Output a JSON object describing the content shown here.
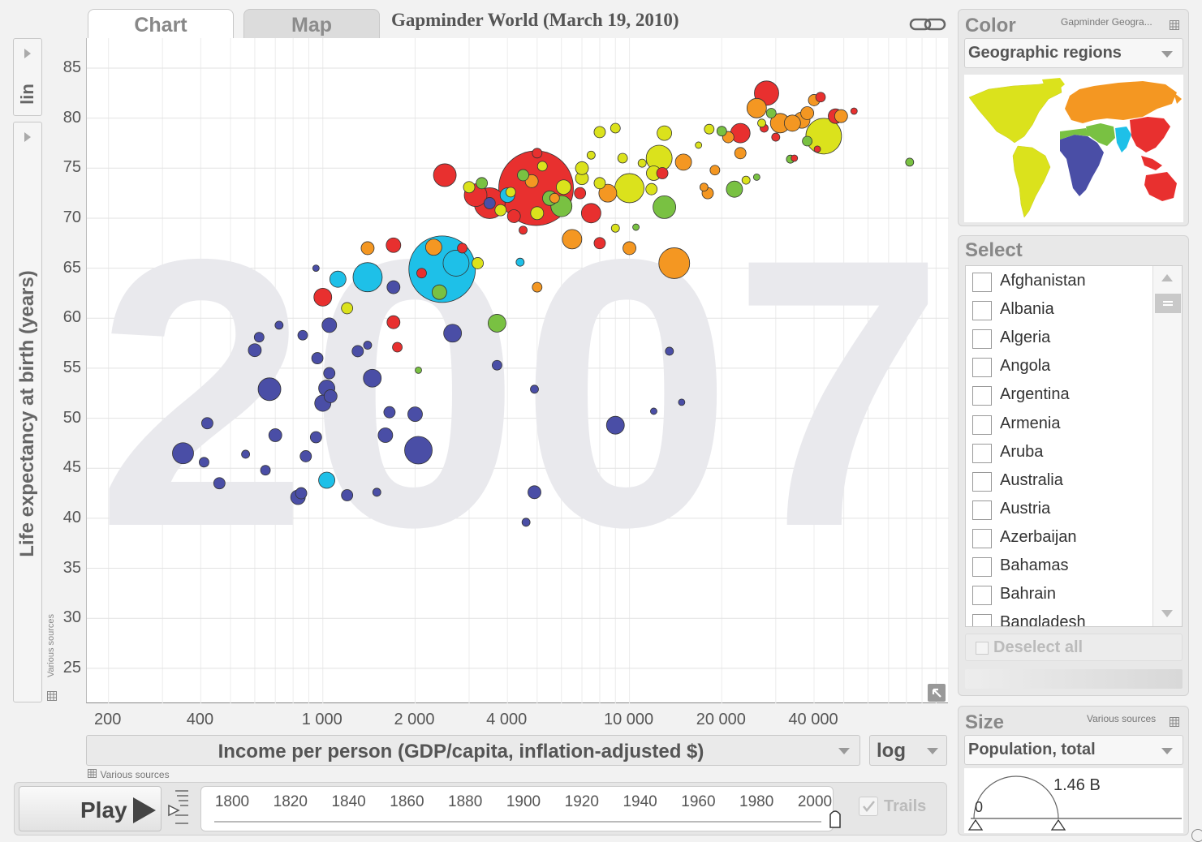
{
  "tabs": {
    "chart": "Chart",
    "map": "Map"
  },
  "title": "Gapminder World (March 19, 2010)",
  "big_year": "2007",
  "y_axis": {
    "label": "Life expectancy at birth (years)",
    "scale": "lin",
    "source": "Various sources"
  },
  "x_axis": {
    "label": "Income per person (GDP/capita, inflation-adjusted $)",
    "scale": "log",
    "source": "Various sources"
  },
  "play": {
    "label": "Play",
    "trails": "Trails"
  },
  "timeline": {
    "years": [
      "1800",
      "1820",
      "1840",
      "1860",
      "1880",
      "1900",
      "1920",
      "1940",
      "1960",
      "1980",
      "2000"
    ],
    "current_year": 2007
  },
  "color_panel": {
    "title": "Color",
    "note": "Gapminder Geogra...",
    "selected": "Geographic regions"
  },
  "select_panel": {
    "title": "Select",
    "countries": [
      "Afghanistan",
      "Albania",
      "Algeria",
      "Angola",
      "Argentina",
      "Armenia",
      "Aruba",
      "Australia",
      "Austria",
      "Azerbaijan",
      "Bahamas",
      "Bahrain",
      "Bangladesh"
    ],
    "deselect": "Deselect all"
  },
  "size_panel": {
    "title": "Size",
    "note": "Various sources",
    "selected": "Population, total",
    "min": "0",
    "max": "1.46 B"
  },
  "colors": {
    "blue": "#4a4ea6",
    "cyan": "#1ec0e8",
    "green": "#79c142",
    "yellow": "#dbe21c",
    "orange": "#f49722",
    "red": "#e8302f"
  },
  "chart_data": {
    "type": "scatter",
    "title": "Gapminder World 2007",
    "xlabel": "Income per person (GDP/capita, inflation-adjusted $)",
    "ylabel": "Life expectancy at birth (years)",
    "x_scale": "log",
    "xlim": [
      170,
      110000
    ],
    "ylim": [
      21.5,
      88
    ],
    "x_ticks": [
      "200",
      "400",
      "1 000",
      "2 000",
      "4 000",
      "10 000",
      "20 000",
      "40 000"
    ],
    "x_tick_values": [
      200,
      400,
      1000,
      2000,
      4000,
      10000,
      20000,
      40000
    ],
    "y_ticks": [
      25,
      30,
      35,
      40,
      45,
      50,
      55,
      60,
      65,
      70,
      75,
      80,
      85
    ],
    "points": [
      {
        "x": 4960,
        "y": 73,
        "r": 46,
        "c": "red"
      },
      {
        "x": 2450,
        "y": 64.9,
        "r": 41,
        "c": "cyan"
      },
      {
        "x": 2720,
        "y": 65.5,
        "r": 16,
        "c": "cyan"
      },
      {
        "x": 43000,
        "y": 78.2,
        "r": 22,
        "c": "yellow"
      },
      {
        "x": 2050,
        "y": 46.8,
        "r": 17,
        "c": "blue"
      },
      {
        "x": 350,
        "y": 46.5,
        "r": 13,
        "c": "blue"
      },
      {
        "x": 1400,
        "y": 64.1,
        "r": 18,
        "c": "cyan"
      },
      {
        "x": 1120,
        "y": 63.9,
        "r": 10,
        "c": "cyan"
      },
      {
        "x": 1700,
        "y": 63.1,
        "r": 8,
        "c": "blue"
      },
      {
        "x": 670,
        "y": 52.9,
        "r": 14,
        "c": "blue"
      },
      {
        "x": 1000,
        "y": 62.1,
        "r": 11,
        "c": "red"
      },
      {
        "x": 9000,
        "y": 49.3,
        "r": 11,
        "c": "blue"
      },
      {
        "x": 14000,
        "y": 65.5,
        "r": 19,
        "c": "orange"
      },
      {
        "x": 12500,
        "y": 76,
        "r": 16,
        "c": "yellow"
      },
      {
        "x": 10000,
        "y": 73,
        "r": 18,
        "c": "yellow"
      },
      {
        "x": 28000,
        "y": 82.5,
        "r": 15,
        "c": "red"
      },
      {
        "x": 31000,
        "y": 79.5,
        "r": 12,
        "c": "orange"
      },
      {
        "x": 26000,
        "y": 81,
        "r": 12,
        "c": "orange"
      },
      {
        "x": 3500,
        "y": 71.5,
        "r": 19,
        "c": "red"
      },
      {
        "x": 3150,
        "y": 72.3,
        "r": 14,
        "c": "red"
      },
      {
        "x": 2500,
        "y": 74.3,
        "r": 14,
        "c": "red"
      },
      {
        "x": 6000,
        "y": 71.2,
        "r": 13,
        "c": "green"
      },
      {
        "x": 13000,
        "y": 71.1,
        "r": 14,
        "c": "green"
      },
      {
        "x": 3700,
        "y": 59.5,
        "r": 11,
        "c": "green"
      },
      {
        "x": 2650,
        "y": 58.5,
        "r": 11,
        "c": "blue"
      },
      {
        "x": 1450,
        "y": 54,
        "r": 11,
        "c": "blue"
      },
      {
        "x": 1050,
        "y": 59.3,
        "r": 9,
        "c": "blue"
      },
      {
        "x": 1030,
        "y": 53,
        "r": 10,
        "c": "blue"
      },
      {
        "x": 1000,
        "y": 51.5,
        "r": 10,
        "c": "blue"
      },
      {
        "x": 1060,
        "y": 52.2,
        "r": 8,
        "c": "blue"
      },
      {
        "x": 830,
        "y": 42.1,
        "r": 9,
        "c": "blue"
      },
      {
        "x": 1030,
        "y": 43.8,
        "r": 10,
        "c": "cyan"
      },
      {
        "x": 2000,
        "y": 50.4,
        "r": 9,
        "c": "blue"
      },
      {
        "x": 1600,
        "y": 48.3,
        "r": 9,
        "c": "blue"
      },
      {
        "x": 4900,
        "y": 42.6,
        "r": 8,
        "c": "blue"
      },
      {
        "x": 4600,
        "y": 39.6,
        "r": 5,
        "c": "blue"
      },
      {
        "x": 420,
        "y": 49.5,
        "r": 7,
        "c": "blue"
      },
      {
        "x": 410,
        "y": 45.6,
        "r": 6,
        "c": "blue"
      },
      {
        "x": 460,
        "y": 43.5,
        "r": 7,
        "c": "blue"
      },
      {
        "x": 560,
        "y": 46.4,
        "r": 5,
        "c": "blue"
      },
      {
        "x": 650,
        "y": 44.8,
        "r": 6,
        "c": "blue"
      },
      {
        "x": 700,
        "y": 48.3,
        "r": 8,
        "c": "blue"
      },
      {
        "x": 850,
        "y": 42.5,
        "r": 7,
        "c": "blue"
      },
      {
        "x": 880,
        "y": 46.2,
        "r": 7,
        "c": "blue"
      },
      {
        "x": 1200,
        "y": 42.3,
        "r": 7,
        "c": "blue"
      },
      {
        "x": 1500,
        "y": 42.6,
        "r": 5,
        "c": "blue"
      },
      {
        "x": 950,
        "y": 48.1,
        "r": 7,
        "c": "blue"
      },
      {
        "x": 600,
        "y": 56.8,
        "r": 8,
        "c": "blue"
      },
      {
        "x": 620,
        "y": 58.1,
        "r": 6,
        "c": "blue"
      },
      {
        "x": 720,
        "y": 59.3,
        "r": 5,
        "c": "blue"
      },
      {
        "x": 860,
        "y": 58.3,
        "r": 6,
        "c": "blue"
      },
      {
        "x": 1300,
        "y": 56.7,
        "r": 7,
        "c": "blue"
      },
      {
        "x": 1050,
        "y": 54.5,
        "r": 7,
        "c": "blue"
      },
      {
        "x": 1650,
        "y": 50.6,
        "r": 7,
        "c": "blue"
      },
      {
        "x": 960,
        "y": 56,
        "r": 7,
        "c": "blue"
      },
      {
        "x": 3700,
        "y": 55.3,
        "r": 6,
        "c": "blue"
      },
      {
        "x": 4900,
        "y": 52.9,
        "r": 5,
        "c": "blue"
      },
      {
        "x": 13500,
        "y": 56.7,
        "r": 5,
        "c": "blue"
      },
      {
        "x": 14800,
        "y": 51.6,
        "r": 4,
        "c": "blue"
      },
      {
        "x": 12000,
        "y": 50.7,
        "r": 4,
        "c": "blue"
      },
      {
        "x": 2050,
        "y": 54.8,
        "r": 4,
        "c": "green"
      },
      {
        "x": 1400,
        "y": 67,
        "r": 8,
        "c": "orange"
      },
      {
        "x": 1700,
        "y": 67.3,
        "r": 9,
        "c": "red"
      },
      {
        "x": 2300,
        "y": 67.1,
        "r": 10,
        "c": "orange"
      },
      {
        "x": 1700,
        "y": 59.6,
        "r": 8,
        "c": "red"
      },
      {
        "x": 1750,
        "y": 57.1,
        "r": 6,
        "c": "red"
      },
      {
        "x": 1200,
        "y": 61,
        "r": 7,
        "c": "yellow"
      },
      {
        "x": 2100,
        "y": 64.5,
        "r": 6,
        "c": "red"
      },
      {
        "x": 2400,
        "y": 62.6,
        "r": 9,
        "c": "green"
      },
      {
        "x": 3200,
        "y": 65.5,
        "r": 7,
        "c": "yellow"
      },
      {
        "x": 4400,
        "y": 65.6,
        "r": 5,
        "c": "cyan"
      },
      {
        "x": 5000,
        "y": 63.1,
        "r": 6,
        "c": "orange"
      },
      {
        "x": 6500,
        "y": 67.9,
        "r": 12,
        "c": "orange"
      },
      {
        "x": 8000,
        "y": 67.5,
        "r": 7,
        "c": "red"
      },
      {
        "x": 10000,
        "y": 67,
        "r": 8,
        "c": "orange"
      },
      {
        "x": 9000,
        "y": 69,
        "r": 5,
        "c": "yellow"
      },
      {
        "x": 10500,
        "y": 69.1,
        "r": 4,
        "c": "green"
      },
      {
        "x": 7500,
        "y": 70.5,
        "r": 12,
        "c": "red"
      },
      {
        "x": 8500,
        "y": 72.5,
        "r": 11,
        "c": "orange"
      },
      {
        "x": 4000,
        "y": 72.3,
        "r": 9,
        "c": "cyan"
      },
      {
        "x": 5000,
        "y": 70.5,
        "r": 8,
        "c": "yellow"
      },
      {
        "x": 4500,
        "y": 74.3,
        "r": 7,
        "c": "green"
      },
      {
        "x": 7000,
        "y": 74,
        "r": 8,
        "c": "yellow"
      },
      {
        "x": 6100,
        "y": 73.1,
        "r": 9,
        "c": "yellow"
      },
      {
        "x": 12000,
        "y": 74.5,
        "r": 9,
        "c": "yellow"
      },
      {
        "x": 15000,
        "y": 75.6,
        "r": 10,
        "c": "orange"
      },
      {
        "x": 12800,
        "y": 74.5,
        "r": 7,
        "c": "red"
      },
      {
        "x": 11800,
        "y": 72.9,
        "r": 7,
        "c": "yellow"
      },
      {
        "x": 16800,
        "y": 77.3,
        "r": 4,
        "c": "yellow"
      },
      {
        "x": 22000,
        "y": 72.9,
        "r": 10,
        "c": "green"
      },
      {
        "x": 18000,
        "y": 72.5,
        "r": 7,
        "c": "orange"
      },
      {
        "x": 19000,
        "y": 74.8,
        "r": 6,
        "c": "orange"
      },
      {
        "x": 17500,
        "y": 73.1,
        "r": 5,
        "c": "orange"
      },
      {
        "x": 24000,
        "y": 73.8,
        "r": 5,
        "c": "yellow"
      },
      {
        "x": 26000,
        "y": 74.1,
        "r": 4,
        "c": "green"
      },
      {
        "x": 23000,
        "y": 76.5,
        "r": 7,
        "c": "orange"
      },
      {
        "x": 21000,
        "y": 78.1,
        "r": 7,
        "c": "orange"
      },
      {
        "x": 23000,
        "y": 78.5,
        "r": 12,
        "c": "red"
      },
      {
        "x": 27500,
        "y": 79,
        "r": 5,
        "c": "red"
      },
      {
        "x": 30000,
        "y": 78.1,
        "r": 5,
        "c": "red"
      },
      {
        "x": 36500,
        "y": 79.8,
        "r": 10,
        "c": "orange"
      },
      {
        "x": 34000,
        "y": 79.5,
        "r": 10,
        "c": "orange"
      },
      {
        "x": 38000,
        "y": 80.5,
        "r": 8,
        "c": "orange"
      },
      {
        "x": 40000,
        "y": 81.8,
        "r": 7,
        "c": "orange"
      },
      {
        "x": 42000,
        "y": 82.1,
        "r": 6,
        "c": "red"
      },
      {
        "x": 47000,
        "y": 80.2,
        "r": 9,
        "c": "red"
      },
      {
        "x": 49000,
        "y": 80.2,
        "r": 8,
        "c": "orange"
      },
      {
        "x": 54000,
        "y": 80.7,
        "r": 4,
        "c": "red"
      },
      {
        "x": 38000,
        "y": 77.7,
        "r": 6,
        "c": "green"
      },
      {
        "x": 41000,
        "y": 76.9,
        "r": 4,
        "c": "red"
      },
      {
        "x": 33500,
        "y": 75.9,
        "r": 5,
        "c": "green"
      },
      {
        "x": 34500,
        "y": 76,
        "r": 4,
        "c": "red"
      },
      {
        "x": 82000,
        "y": 75.6,
        "r": 5,
        "c": "green"
      },
      {
        "x": 20000,
        "y": 78.7,
        "r": 6,
        "c": "green"
      },
      {
        "x": 18200,
        "y": 78.9,
        "r": 6,
        "c": "yellow"
      },
      {
        "x": 27000,
        "y": 79.5,
        "r": 5,
        "c": "yellow"
      },
      {
        "x": 29000,
        "y": 80.5,
        "r": 6,
        "c": "green"
      },
      {
        "x": 8000,
        "y": 78.6,
        "r": 7,
        "c": "yellow"
      },
      {
        "x": 9000,
        "y": 79,
        "r": 6,
        "c": "yellow"
      },
      {
        "x": 9500,
        "y": 76,
        "r": 6,
        "c": "yellow"
      },
      {
        "x": 13000,
        "y": 78.5,
        "r": 9,
        "c": "yellow"
      },
      {
        "x": 7500,
        "y": 76.3,
        "r": 5,
        "c": "yellow"
      },
      {
        "x": 11000,
        "y": 75.5,
        "r": 5,
        "c": "yellow"
      },
      {
        "x": 5000,
        "y": 76.5,
        "r": 6,
        "c": "red"
      },
      {
        "x": 7000,
        "y": 75,
        "r": 8,
        "c": "yellow"
      },
      {
        "x": 8000,
        "y": 73.5,
        "r": 7,
        "c": "yellow"
      },
      {
        "x": 5500,
        "y": 72,
        "r": 9,
        "c": "green"
      },
      {
        "x": 3800,
        "y": 70.8,
        "r": 7,
        "c": "yellow"
      },
      {
        "x": 4200,
        "y": 70.2,
        "r": 8,
        "c": "red"
      },
      {
        "x": 3000,
        "y": 73.1,
        "r": 7,
        "c": "yellow"
      },
      {
        "x": 3300,
        "y": 73.5,
        "r": 7,
        "c": "green"
      },
      {
        "x": 4800,
        "y": 73.7,
        "r": 8,
        "c": "orange"
      },
      {
        "x": 5200,
        "y": 75.2,
        "r": 6,
        "c": "yellow"
      },
      {
        "x": 4500,
        "y": 68.8,
        "r": 5,
        "c": "red"
      },
      {
        "x": 2850,
        "y": 67,
        "r": 6,
        "c": "red"
      },
      {
        "x": 4100,
        "y": 72.6,
        "r": 6,
        "c": "yellow"
      },
      {
        "x": 6900,
        "y": 72.5,
        "r": 7,
        "c": "red"
      },
      {
        "x": 5700,
        "y": 72,
        "r": 6,
        "c": "orange"
      },
      {
        "x": 3500,
        "y": 71.5,
        "r": 7,
        "c": "blue"
      },
      {
        "x": 1400,
        "y": 57.3,
        "r": 5,
        "c": "blue"
      },
      {
        "x": 950,
        "y": 65,
        "r": 4,
        "c": "blue"
      }
    ]
  }
}
